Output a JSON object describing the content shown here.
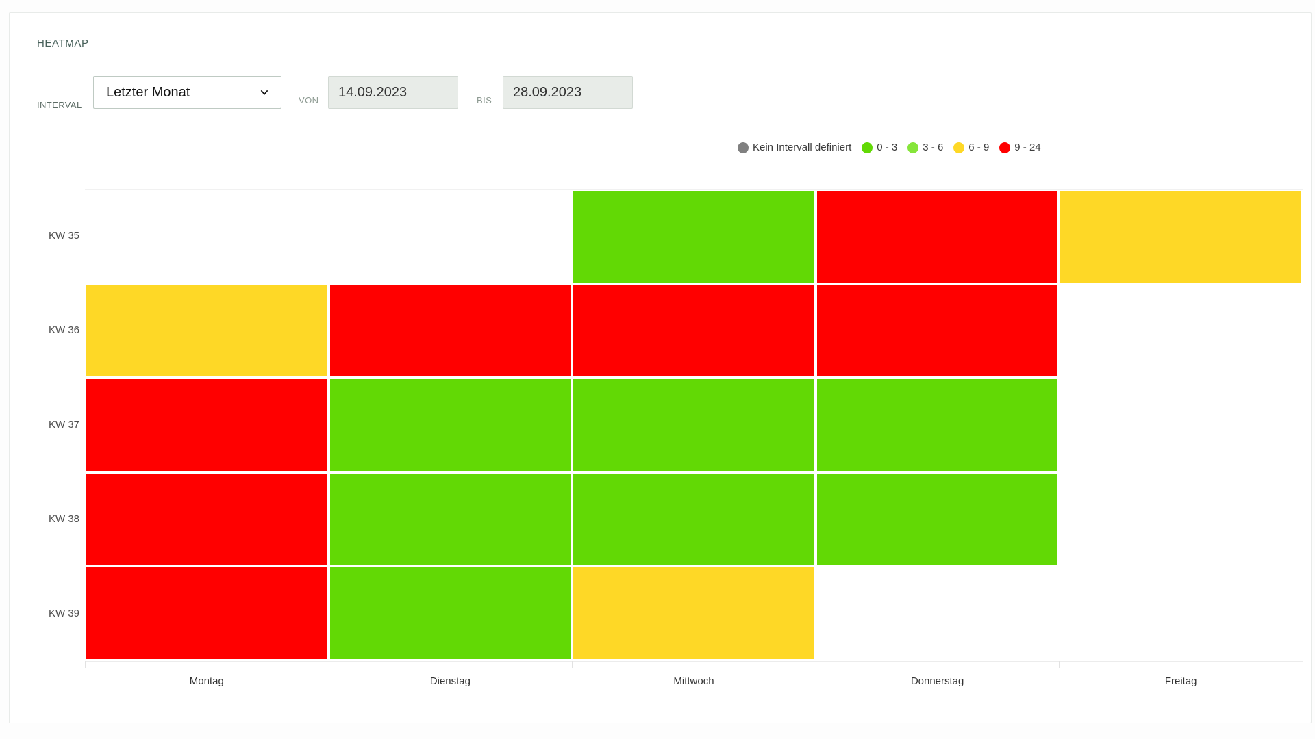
{
  "header": {
    "title": "HEATMAP"
  },
  "controls": {
    "interval_label": "INTERVAL",
    "interval_value": "Letzter Monat",
    "von_label": "VON",
    "von_value": "14.09.2023",
    "bis_label": "BIS",
    "bis_value": "28.09.2023"
  },
  "legend": [
    {
      "label": "Kein Intervall definiert",
      "color": "#808080"
    },
    {
      "label": "0 - 3",
      "color": "#62d905"
    },
    {
      "label": "3 - 6",
      "color": "#86e53a"
    },
    {
      "label": "6 - 9",
      "color": "#fed826"
    },
    {
      "label": "9 - 24",
      "color": "#ff0000"
    }
  ],
  "chart_data": {
    "type": "heatmap",
    "title": "HEATMAP",
    "legend_position": "top-right",
    "x_categories": [
      "Montag",
      "Dienstag",
      "Mittwoch",
      "Donnerstag",
      "Freitag"
    ],
    "y_categories": [
      "KW 35",
      "KW 36",
      "KW 37",
      "KW 38",
      "KW 39"
    ],
    "bucket_colors": {
      "Kein Intervall definiert": "#808080",
      "0 - 3": "#62d905",
      "3 - 6": "#86e53a",
      "6 - 9": "#fed826",
      "9 - 24": "#ff0000"
    },
    "grid": [
      [
        null,
        null,
        "0 - 3",
        "9 - 24",
        "6 - 9"
      ],
      [
        "6 - 9",
        "9 - 24",
        "9 - 24",
        "9 - 24",
        null
      ],
      [
        "9 - 24",
        "0 - 3",
        "0 - 3",
        "0 - 3",
        null
      ],
      [
        "9 - 24",
        "0 - 3",
        "0 - 3",
        "0 - 3",
        null
      ],
      [
        "9 - 24",
        "0 - 3",
        "6 - 9",
        null,
        null
      ]
    ]
  }
}
